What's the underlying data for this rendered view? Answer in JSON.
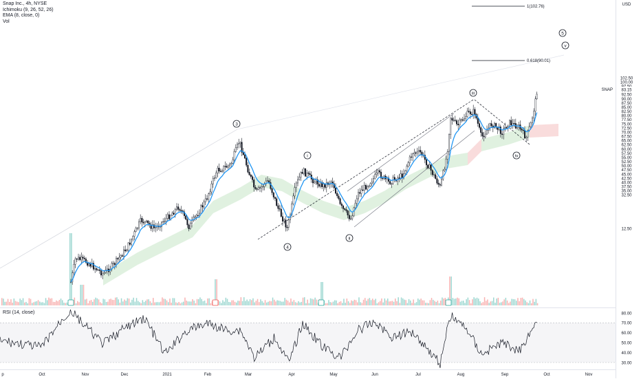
{
  "header": {
    "symbol_line": "Snap Inc., 4h, NYSE",
    "indicator_ichimoku": "Ichimoku (9, 26, 52, 26)",
    "indicator_ema": "EMA (8, close, 0)",
    "indicator_vol": "Vol"
  },
  "rsi_label": "RSI (14, close)",
  "currency": "USD",
  "price_tag": {
    "symbol": "SNAP",
    "value": "83.15"
  },
  "fib_labels": {
    "level_1": "1(102.76)",
    "level_0618": "0.618(90.01)"
  },
  "wave_labels": [
    "3",
    "4",
    "5",
    "i",
    "ii",
    "iii",
    "iv",
    "v"
  ],
  "colors": {
    "up": "#26a69a",
    "down": "#ef5350",
    "ema": "#2196f3",
    "cloud_green": "#a5d6a7",
    "cloud_red": "#ef9a9a",
    "rsi": "#131722",
    "grid": "#e0e3eb"
  },
  "chart_data": [
    {
      "type": "line",
      "title": "Snap Inc., 4h, NYSE",
      "x": [
        "Oct",
        "Nov",
        "Dec",
        "2021",
        "Feb",
        "Mar",
        "Apr",
        "May",
        "Jun",
        "Jul",
        "Aug",
        "Sep",
        "Sep"
      ],
      "y": [
        35.0,
        39.0,
        48.0,
        52.0,
        60.0,
        73.0,
        48.0,
        51.0,
        62.0,
        71.0,
        80.0,
        69.0,
        83.15
      ],
      "x_ticks": [
        "p",
        "Oct",
        "Nov",
        "Dec",
        "2021",
        "Feb",
        "Mar",
        "Apr",
        "May",
        "Jun",
        "Jul",
        "Aug",
        "Sep",
        "Oct",
        "Nov"
      ],
      "y_ticks": [
        "102.50",
        "100.00",
        "97.50",
        "95.00",
        "92.50",
        "90.00",
        "87.50",
        "85.00",
        "82.50",
        "80.00",
        "77.50",
        "75.00",
        "72.50",
        "70.00",
        "67.50",
        "65.00",
        "62.50",
        "60.00",
        "57.50",
        "55.00",
        "52.50",
        "50.00",
        "47.50",
        "45.00",
        "42.50",
        "40.00",
        "37.50",
        "35.00",
        "32.50",
        "12.50"
      ],
      "ylim": [
        12.5,
        103.5
      ],
      "grid": false,
      "annotations": [
        "3",
        "4",
        "5",
        "i",
        "ii",
        "iii",
        "iv",
        "v",
        "1(102.76)",
        "0.618(90.01)"
      ]
    },
    {
      "type": "line",
      "title": "RSI (14, close)",
      "x": [
        "Oct",
        "Nov",
        "Dec",
        "2021",
        "Feb",
        "Mar",
        "Apr",
        "May",
        "Jun",
        "Jul",
        "Aug",
        "Sep",
        "Sep"
      ],
      "y": [
        78,
        55,
        62,
        48,
        70,
        72,
        35,
        32,
        66,
        42,
        78,
        45,
        72
      ],
      "y_ticks": [
        "80.00",
        "70.00",
        "60.00",
        "50.00",
        "40.00",
        "30.00"
      ],
      "ylim": [
        27,
        83
      ],
      "bands": [
        30,
        70
      ]
    }
  ]
}
